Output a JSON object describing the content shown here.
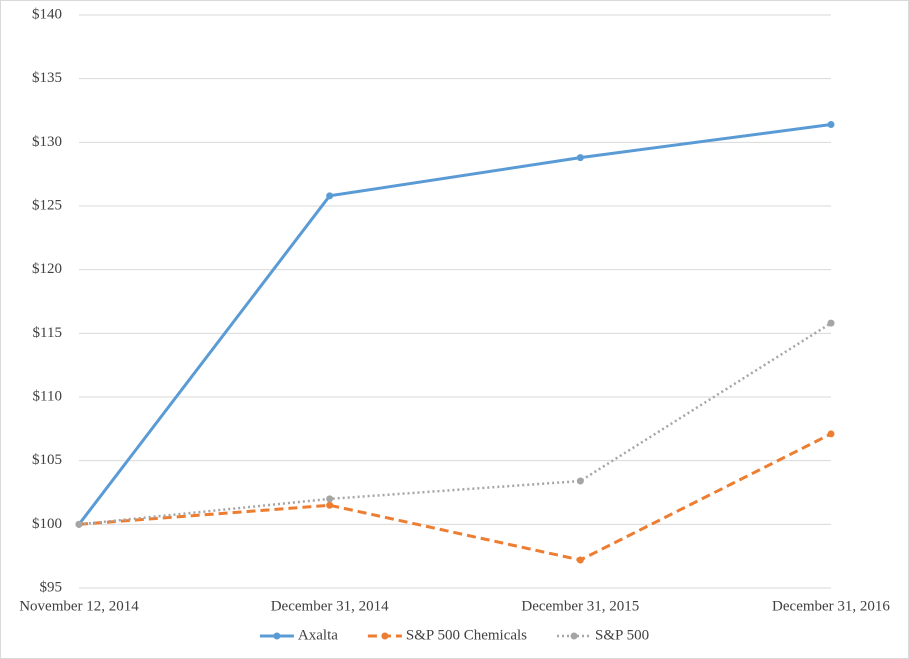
{
  "chart_data": {
    "type": "line",
    "categories": [
      "November 12, 2014",
      "December 31, 2014",
      "December 31, 2015",
      "December 31, 2016"
    ],
    "series": [
      {
        "name": "Axalta",
        "color": "#5b9bd5",
        "dash": "solid",
        "values": [
          100,
          125.8,
          128.8,
          131.4
        ]
      },
      {
        "name": "S&P 500 Chemicals",
        "color": "#ed7d31",
        "dash": "dashed",
        "values": [
          100,
          101.5,
          97.2,
          107.1
        ]
      },
      {
        "name": "S&P 500",
        "color": "#a5a5a5",
        "dash": "dotted",
        "values": [
          100,
          102.0,
          103.4,
          115.8
        ]
      }
    ],
    "ylim": [
      95,
      140
    ],
    "yticks": [
      {
        "value": 95,
        "label": "$95"
      },
      {
        "value": 100,
        "label": "$100"
      },
      {
        "value": 105,
        "label": "$105"
      },
      {
        "value": 110,
        "label": "$110"
      },
      {
        "value": 115,
        "label": "$115"
      },
      {
        "value": 120,
        "label": "$120"
      },
      {
        "value": 125,
        "label": "$125"
      },
      {
        "value": 130,
        "label": "$130"
      },
      {
        "value": 135,
        "label": "$135"
      },
      {
        "value": 140,
        "label": "$140"
      }
    ],
    "grid": true,
    "legend": "bottom"
  }
}
